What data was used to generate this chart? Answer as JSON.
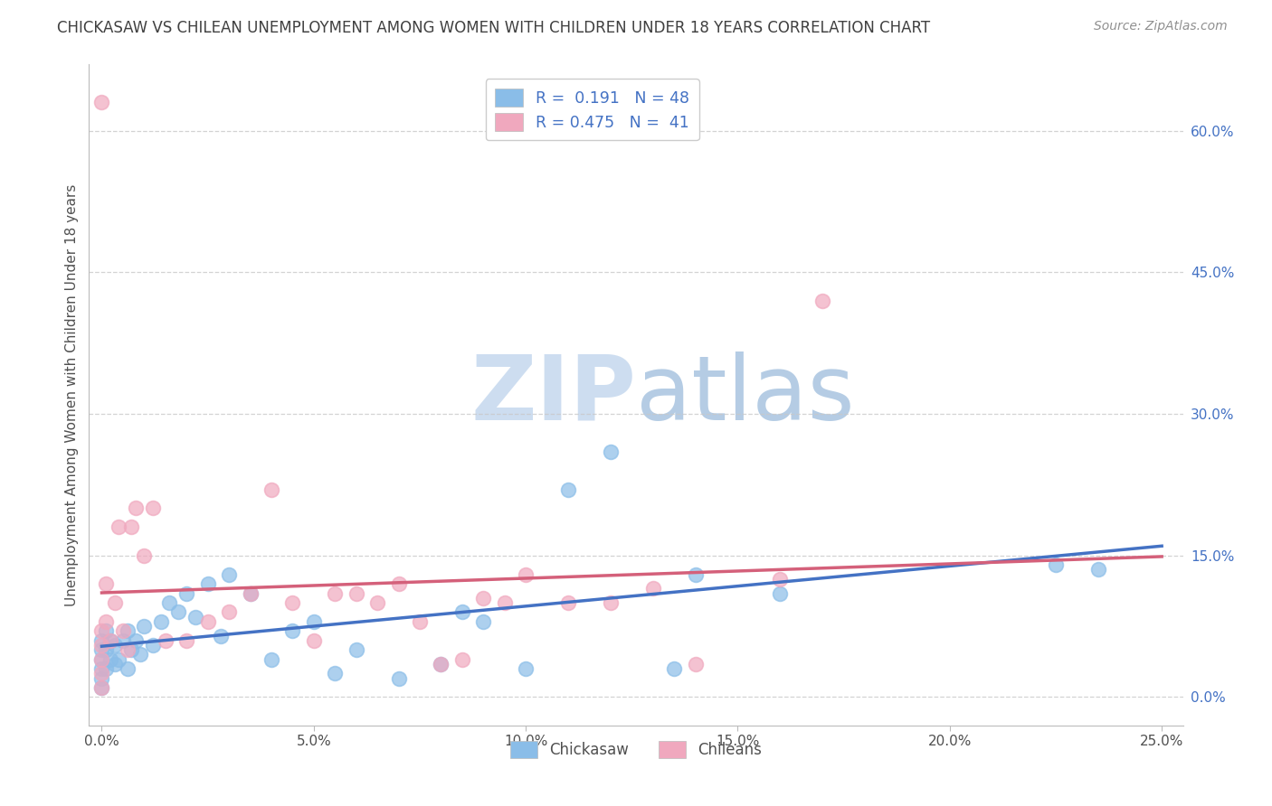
{
  "title": "CHICKASAW VS CHILEAN UNEMPLOYMENT AMONG WOMEN WITH CHILDREN UNDER 18 YEARS CORRELATION CHART",
  "source": "Source: ZipAtlas.com",
  "xlabel_values": [
    0.0,
    5.0,
    10.0,
    15.0,
    20.0,
    25.0
  ],
  "ylabel_values_right": [
    0.0,
    15.0,
    30.0,
    45.0,
    60.0
  ],
  "ylabel_label": "Unemployment Among Women with Children Under 18 years",
  "legend_labels": [
    "Chickasaw",
    "Chileans"
  ],
  "r_chickasaw": 0.191,
  "n_chickasaw": 48,
  "r_chileans": 0.475,
  "n_chileans": 41,
  "color_chickasaw": "#8abde8",
  "color_chileans": "#f0a8be",
  "color_chickasaw_line": "#4472c4",
  "color_chileans_line": "#d4607a",
  "watermark_zip_color": "#c8d8ee",
  "watermark_atlas_color": "#a8c8e8",
  "background_color": "#ffffff",
  "grid_color": "#c8c8c8",
  "title_color": "#404040",
  "source_color": "#909090",
  "chickasaw_x": [
    0.0,
    0.0,
    0.0,
    0.0,
    0.0,
    0.0,
    0.1,
    0.1,
    0.1,
    0.2,
    0.2,
    0.3,
    0.3,
    0.4,
    0.5,
    0.6,
    0.6,
    0.7,
    0.8,
    0.9,
    1.0,
    1.2,
    1.4,
    1.6,
    1.8,
    2.0,
    2.2,
    2.5,
    2.8,
    3.0,
    3.5,
    4.0,
    4.5,
    5.0,
    5.5,
    6.0,
    7.0,
    8.0,
    8.5,
    9.0,
    10.0,
    11.0,
    12.0,
    13.5,
    14.0,
    16.0,
    22.5,
    23.5
  ],
  "chickasaw_y": [
    1.0,
    2.0,
    3.0,
    4.0,
    5.0,
    6.0,
    3.0,
    5.0,
    7.0,
    4.0,
    6.0,
    3.5,
    5.5,
    4.0,
    6.0,
    3.0,
    7.0,
    5.0,
    6.0,
    4.5,
    7.5,
    5.5,
    8.0,
    10.0,
    9.0,
    11.0,
    8.5,
    12.0,
    6.5,
    13.0,
    11.0,
    4.0,
    7.0,
    8.0,
    2.5,
    5.0,
    2.0,
    3.5,
    9.0,
    8.0,
    3.0,
    22.0,
    26.0,
    3.0,
    13.0,
    11.0,
    14.0,
    13.5
  ],
  "chileans_x": [
    0.0,
    0.0,
    0.0,
    0.0,
    0.0,
    0.0,
    0.1,
    0.1,
    0.2,
    0.3,
    0.4,
    0.5,
    0.6,
    0.7,
    0.8,
    1.0,
    1.2,
    1.5,
    2.0,
    2.5,
    3.0,
    3.5,
    4.0,
    4.5,
    5.0,
    5.5,
    6.0,
    6.5,
    7.0,
    7.5,
    8.0,
    8.5,
    9.0,
    9.5,
    10.0,
    11.0,
    12.0,
    13.0,
    14.0,
    16.0,
    17.0
  ],
  "chileans_y": [
    1.0,
    2.5,
    4.0,
    5.5,
    7.0,
    63.0,
    8.0,
    12.0,
    6.0,
    10.0,
    18.0,
    7.0,
    5.0,
    18.0,
    20.0,
    15.0,
    20.0,
    6.0,
    6.0,
    8.0,
    9.0,
    11.0,
    22.0,
    10.0,
    6.0,
    11.0,
    11.0,
    10.0,
    12.0,
    8.0,
    3.5,
    4.0,
    10.5,
    10.0,
    13.0,
    10.0,
    10.0,
    11.5,
    3.5,
    12.5,
    42.0
  ],
  "xmin": -0.3,
  "xmax": 25.5,
  "ymin": -3.0,
  "ymax": 67.0
}
